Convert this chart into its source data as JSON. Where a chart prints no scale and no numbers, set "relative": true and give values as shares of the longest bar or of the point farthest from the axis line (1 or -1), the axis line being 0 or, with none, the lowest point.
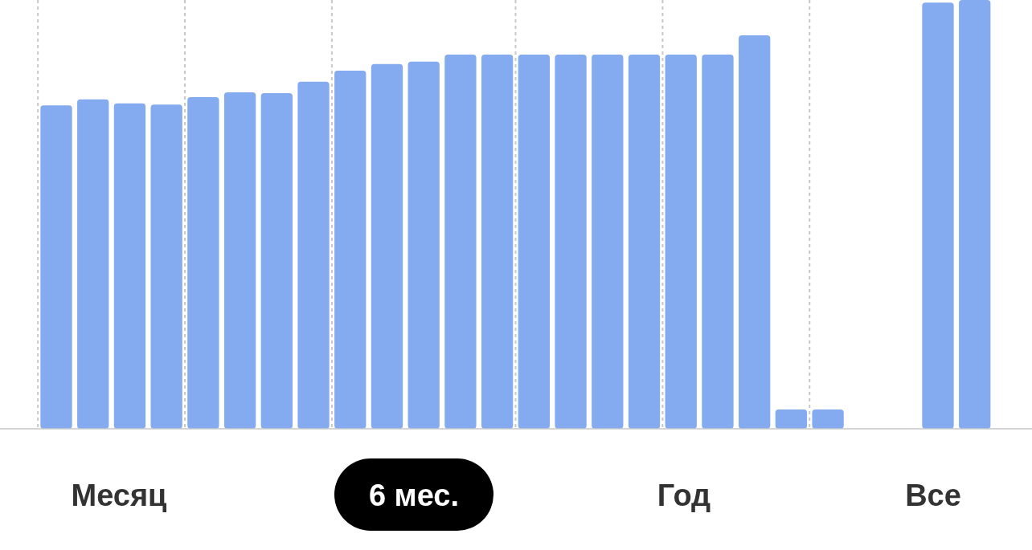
{
  "chart_data": [
    {
      "type": "bar",
      "relative": true,
      "color": "#84aaf0",
      "categories": [
        null,
        null,
        null,
        null,
        null,
        null,
        null,
        null,
        null,
        null,
        null,
        null,
        null,
        null,
        null,
        null,
        null,
        null,
        null,
        null,
        null,
        null
      ],
      "values": [
        0.822,
        0.837,
        0.827,
        0.824,
        0.843,
        0.855,
        0.853,
        0.882,
        0.91,
        0.927,
        0.933,
        0.951,
        0.951,
        0.951,
        0.951,
        0.951,
        0.951,
        0.951,
        0.951,
        1,
        0.049,
        0.049
      ]
    },
    {
      "type": "bar",
      "relative": true,
      "color": "#84aaf0",
      "categories": [
        null,
        null
      ],
      "values": [
        0.994,
        1
      ]
    },
    {
      "type": "other",
      "annotations": [
        "Месяц",
        "6 мес.",
        "Год",
        "Все"
      ]
    }
  ]
}
